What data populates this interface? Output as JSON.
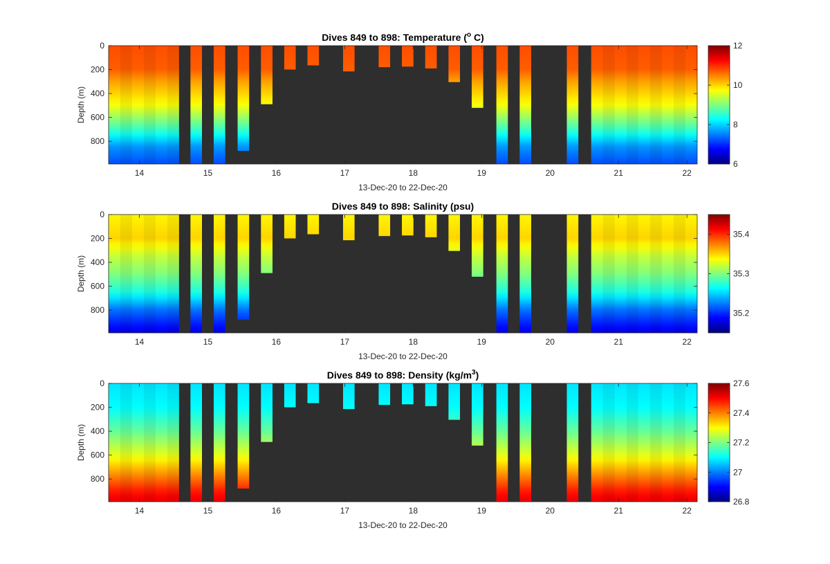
{
  "figure": {
    "background": "#ffffff",
    "no_data_color": "#2e2e2e",
    "colormap": "jet"
  },
  "chart_data": [
    {
      "type": "heatmap",
      "title_prefix": "Dives 849 to 898: Temperature (",
      "title_unit_sup": "o",
      "title_suffix": " C)",
      "xlabel": "13-Dec-20 to 22-Dec-20",
      "ylabel": "Depth (m)",
      "xlim": [
        13.55,
        22.15
      ],
      "ylim": [
        0,
        990
      ],
      "y_reversed": true,
      "xticks": [
        "14",
        "15",
        "16",
        "17",
        "18",
        "19",
        "20",
        "21",
        "22"
      ],
      "yticks": [
        "0",
        "200",
        "400",
        "600",
        "800"
      ],
      "colorbar": {
        "range": [
          6,
          12
        ],
        "ticks": [
          "6",
          "8",
          "10",
          "12"
        ]
      },
      "profile_surface_to_depth": [
        {
          "depth": 0,
          "value": 10.8
        },
        {
          "depth": 200,
          "value": 10.7
        },
        {
          "depth": 300,
          "value": 10.3
        },
        {
          "depth": 500,
          "value": 9.7
        },
        {
          "depth": 700,
          "value": 8.6
        },
        {
          "depth": 850,
          "value": 7.6
        },
        {
          "depth": 990,
          "value": 7.2
        }
      ]
    },
    {
      "type": "heatmap",
      "title_prefix": "Dives 849 to 898: Salinity (psu)",
      "title_unit_sup": "",
      "title_suffix": "",
      "xlabel": "13-Dec-20 to 22-Dec-20",
      "ylabel": "Depth (m)",
      "xlim": [
        13.55,
        22.15
      ],
      "ylim": [
        0,
        990
      ],
      "y_reversed": true,
      "xticks": [
        "14",
        "15",
        "16",
        "17",
        "18",
        "19",
        "20",
        "21",
        "22"
      ],
      "yticks": [
        "0",
        "200",
        "400",
        "600",
        "800"
      ],
      "colorbar": {
        "range": [
          35.15,
          35.45
        ],
        "ticks": [
          "35.2",
          "35.3",
          "35.4"
        ]
      },
      "profile_surface_to_depth": [
        {
          "depth": 0,
          "value": 35.34
        },
        {
          "depth": 200,
          "value": 35.35
        },
        {
          "depth": 350,
          "value": 35.32
        },
        {
          "depth": 500,
          "value": 35.3
        },
        {
          "depth": 650,
          "value": 35.27
        },
        {
          "depth": 800,
          "value": 35.22
        },
        {
          "depth": 990,
          "value": 35.18
        }
      ]
    },
    {
      "type": "heatmap",
      "title_prefix": "Dives 849 to 898: Density (kg/m",
      "title_unit_sup": "3",
      "title_suffix": ")",
      "xlabel": "13-Dec-20 to 22-Dec-20",
      "ylabel": "Depth (m)",
      "xlim": [
        13.55,
        22.15
      ],
      "ylim": [
        0,
        990
      ],
      "y_reversed": true,
      "xticks": [
        "14",
        "15",
        "16",
        "17",
        "18",
        "19",
        "20",
        "21",
        "22"
      ],
      "yticks": [
        "0",
        "200",
        "400",
        "600",
        "800"
      ],
      "colorbar": {
        "range": [
          26.8,
          27.6
        ],
        "ticks": [
          "26.8",
          "27",
          "27.2",
          "27.4",
          "27.6"
        ]
      },
      "profile_surface_to_depth": [
        {
          "depth": 0,
          "value": 27.08
        },
        {
          "depth": 200,
          "value": 27.1
        },
        {
          "depth": 400,
          "value": 27.18
        },
        {
          "depth": 600,
          "value": 27.28
        },
        {
          "depth": 750,
          "value": 27.38
        },
        {
          "depth": 900,
          "value": 27.48
        },
        {
          "depth": 990,
          "value": 27.52
        }
      ]
    }
  ],
  "dives": {
    "continuous_blocks": [
      {
        "start": 13.55,
        "end": 14.58,
        "max_depth": 990
      },
      {
        "start": 20.6,
        "end": 22.15,
        "max_depth": 990
      }
    ],
    "profiles": [
      {
        "day": 14.83,
        "max_depth": 990
      },
      {
        "day": 15.17,
        "max_depth": 990
      },
      {
        "day": 15.52,
        "max_depth": 880
      },
      {
        "day": 15.86,
        "max_depth": 490
      },
      {
        "day": 16.2,
        "max_depth": 200
      },
      {
        "day": 16.54,
        "max_depth": 165
      },
      {
        "day": 17.06,
        "max_depth": 215
      },
      {
        "day": 17.58,
        "max_depth": 180
      },
      {
        "day": 17.92,
        "max_depth": 175
      },
      {
        "day": 18.26,
        "max_depth": 190
      },
      {
        "day": 18.6,
        "max_depth": 305
      },
      {
        "day": 18.94,
        "max_depth": 520
      },
      {
        "day": 19.3,
        "max_depth": 990
      },
      {
        "day": 19.64,
        "max_depth": 990
      },
      {
        "day": 20.33,
        "max_depth": 990
      }
    ],
    "profile_width_days": 0.17
  }
}
